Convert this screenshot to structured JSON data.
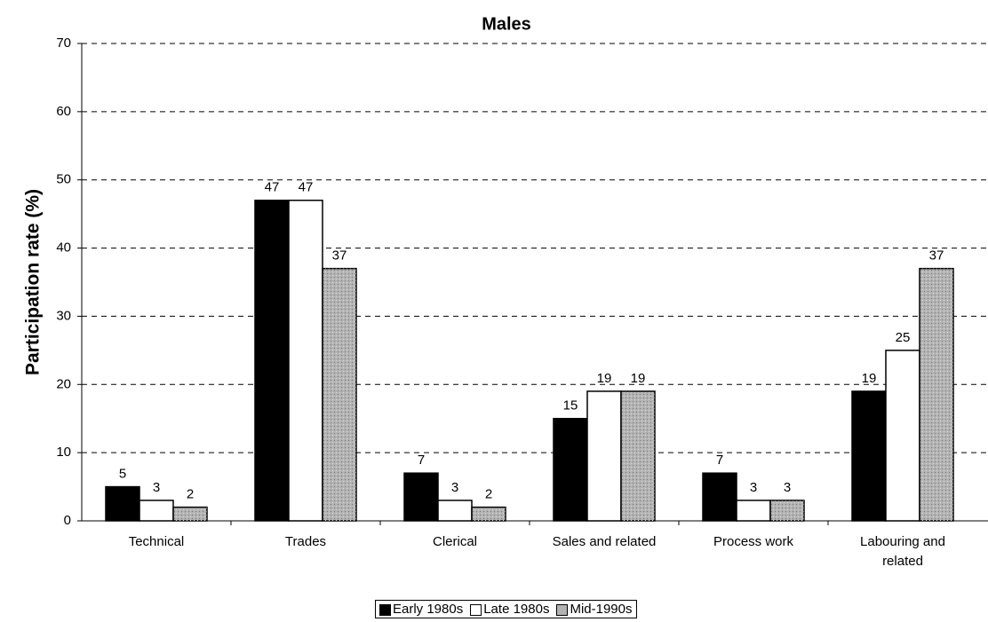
{
  "chart_data": {
    "type": "bar",
    "title": "Males",
    "y_label": "Participation rate (%)",
    "categories": [
      "Technical",
      "Trades",
      "Clerical",
      "Sales and related",
      "Process work",
      "Labouring and related"
    ],
    "series": [
      {
        "name": "Early 1980s",
        "color": "#000000",
        "values": [
          5,
          47,
          7,
          15,
          7,
          19
        ]
      },
      {
        "name": "Late 1980s",
        "color": "#ffffff",
        "values": [
          3,
          47,
          3,
          19,
          3,
          25
        ]
      },
      {
        "name": "Mid-1990s",
        "color": "#b3b3b3",
        "values": [
          2,
          37,
          2,
          19,
          3,
          37
        ]
      }
    ],
    "ylim": [
      0,
      70
    ],
    "yticks": [
      0,
      10,
      20,
      30,
      40,
      50,
      60,
      70
    ],
    "grid": true
  }
}
